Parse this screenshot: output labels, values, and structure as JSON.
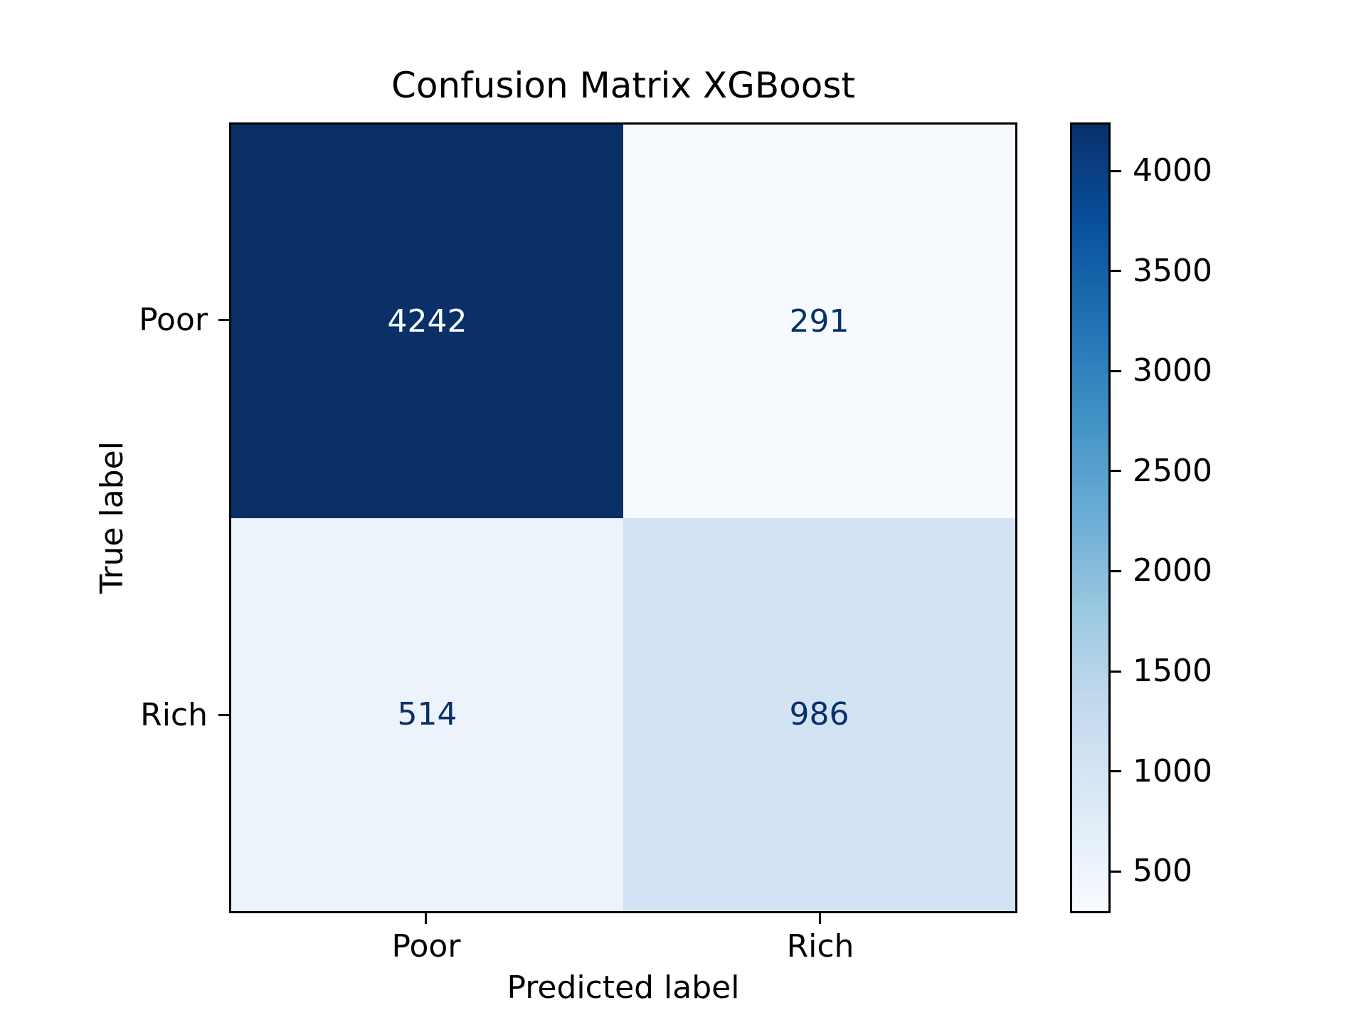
{
  "chart_data": {
    "type": "heatmap",
    "title": "Confusion Matrix XGBoost",
    "xlabel": "Predicted label",
    "ylabel": "True label",
    "x_categories": [
      "Poor",
      "Rich"
    ],
    "y_categories": [
      "Poor",
      "Rich"
    ],
    "matrix": [
      [
        4242,
        291
      ],
      [
        514,
        986
      ]
    ],
    "vmin": 291,
    "vmax": 4242,
    "grid": false,
    "legend_position": "right-colorbar",
    "colorbar_ticks": [
      500,
      1000,
      1500,
      2000,
      2500,
      3000,
      3500,
      4000
    ],
    "colormap": "Blues",
    "colormap_stops": [
      {
        "pos": 0.0,
        "color": "#f7fbff"
      },
      {
        "pos": 0.125,
        "color": "#deebf7"
      },
      {
        "pos": 0.25,
        "color": "#c6dbef"
      },
      {
        "pos": 0.375,
        "color": "#9ecae1"
      },
      {
        "pos": 0.5,
        "color": "#6baed6"
      },
      {
        "pos": 0.625,
        "color": "#4292c6"
      },
      {
        "pos": 0.75,
        "color": "#2171b5"
      },
      {
        "pos": 0.875,
        "color": "#08519c"
      },
      {
        "pos": 1.0,
        "color": "#08306b"
      }
    ],
    "cell_colors": [
      [
        "#0a3067",
        "#f6fafe"
      ],
      [
        "#edf3fb",
        "#d3e3f3"
      ]
    ],
    "cell_text_colors": [
      [
        "#f7fbff",
        "#08306b"
      ],
      [
        "#08306b",
        "#08306b"
      ]
    ]
  }
}
